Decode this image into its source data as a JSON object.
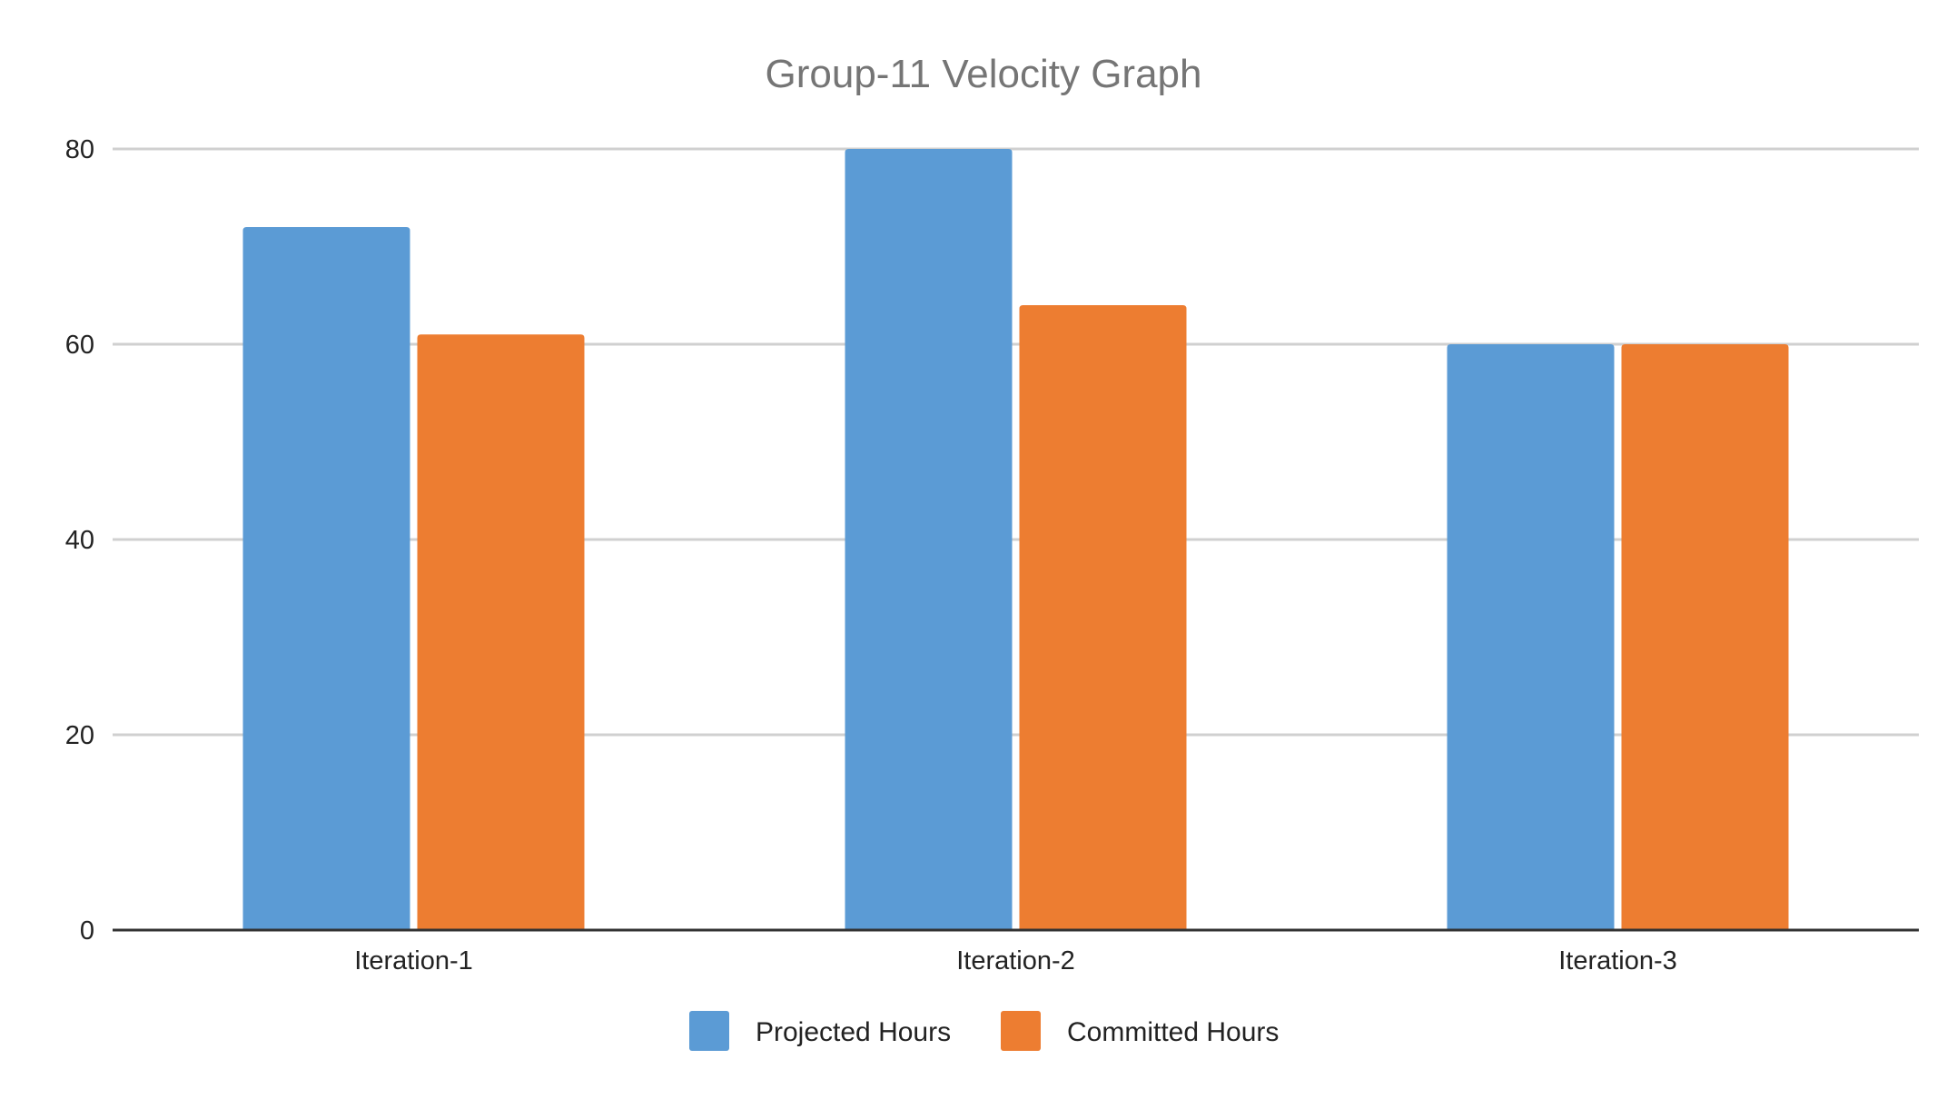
{
  "chart_data": {
    "type": "bar",
    "title": "Group-11 Velocity Graph",
    "xlabel": "",
    "ylabel": "",
    "categories": [
      "Iteration-1",
      "Iteration-2",
      "Iteration-3"
    ],
    "series": [
      {
        "name": "Projected Hours",
        "color": "#5B9BD5",
        "values": [
          72,
          80,
          60
        ]
      },
      {
        "name": "Committed Hours",
        "color": "#ED7D31",
        "values": [
          61,
          64,
          60
        ]
      }
    ],
    "ylim": [
      0,
      80
    ],
    "yticks": [
      0,
      20,
      40,
      60,
      80
    ],
    "grid": true,
    "legend_position": "bottom"
  }
}
